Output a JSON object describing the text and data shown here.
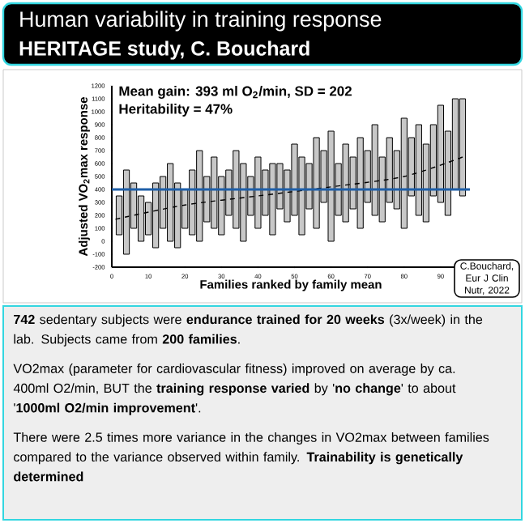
{
  "chart_data": {
    "type": "bar",
    "title": "Human variability in training response",
    "subtitle": "HERITAGE study, C. Bouchard",
    "xlabel": "Families ranked by family mean",
    "ylabel": "Adjusted VO$_{2}$max response",
    "xlim": [
      0,
      98
    ],
    "xticks": [
      0,
      10,
      20,
      30,
      40,
      50,
      60,
      70,
      80,
      90
    ],
    "ylim": [
      -200,
      1200
    ],
    "yticks": [
      -200,
      -100,
      0,
      100,
      200,
      300,
      400,
      500,
      600,
      700,
      800,
      900,
      1000,
      1100,
      1200
    ],
    "series": [
      {
        "color": "#c8c8c8",
        "x": [
          2,
          4,
          6,
          8,
          10,
          12,
          14,
          16,
          18,
          20,
          22,
          24,
          26,
          28,
          30,
          32,
          34,
          36,
          38,
          40,
          42,
          44,
          46,
          48,
          50,
          52,
          54,
          56,
          58,
          60,
          62,
          64,
          66,
          68,
          70,
          72,
          74,
          76,
          78,
          80,
          82,
          84,
          86,
          88,
          90,
          92,
          94,
          96
        ],
        "base": [
          50,
          -100,
          100,
          0,
          50,
          -50,
          100,
          0,
          -50,
          100,
          50,
          0,
          150,
          100,
          50,
          200,
          100,
          0,
          200,
          100,
          200,
          50,
          250,
          150,
          200,
          50,
          250,
          100,
          300,
          0,
          200,
          150,
          250,
          100,
          300,
          200,
          150,
          300,
          250,
          100,
          350,
          200,
          150,
          350,
          300,
          200,
          400,
          350
        ],
        "values": [
          300,
          650,
          350,
          350,
          250,
          500,
          400,
          600,
          500,
          300,
          500,
          700,
          350,
          550,
          450,
          350,
          600,
          600,
          300,
          550,
          350,
          550,
          350,
          400,
          550,
          600,
          350,
          700,
          400,
          850,
          400,
          600,
          400,
          700,
          400,
          700,
          500,
          500,
          450,
          850,
          450,
          700,
          600,
          550,
          750,
          650,
          700,
          750
        ]
      },
      {
        "type": "line",
        "color": "#000000",
        "line_style": "dashed",
        "x": [
          1,
          20,
          40,
          60,
          80,
          96
        ],
        "values": [
          170,
          280,
          350,
          420,
          500,
          650
        ]
      }
    ],
    "ref_lines": [
      {
        "axis": "y",
        "value": 400,
        "color": "#1f5fa8"
      }
    ],
    "annotations": [
      "**Mean gain: 393 ml O$_{2}$/min, SD = 202**",
      "**Heritability = 47%**",
      "C.Bouchard, Eur J Clin Nutr, 2022",
      "**742** sedentary subjects were **endurance trained for 20 weeks** (3x/week) in the lab. Subjects came from **200 families**.",
      "VO2max (parameter for cardiovascular fitness) improved on average by ca. 400ml O2/min, BUT the **training response varied** by '**no change**' to about '**1000ml O2/min improvement**'.",
      "There were 2.5 times more variance in the changes in VO2max between families compared to the variance observed within family. **Trainability is genetically determined**"
    ]
  }
}
